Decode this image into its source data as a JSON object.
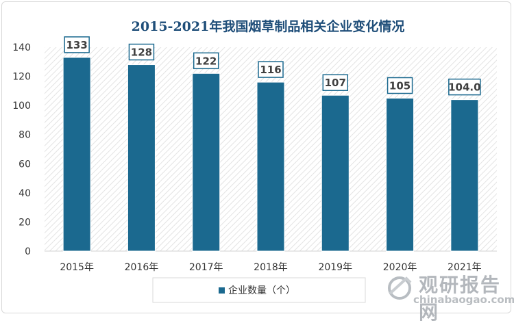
{
  "chart_data": {
    "type": "bar",
    "title": "2015-2021年我国烟草制品相关企业变化情况",
    "categories": [
      "2015年",
      "2016年",
      "2017年",
      "2018年",
      "2019年",
      "2020年",
      "2021年"
    ],
    "series": [
      {
        "name": "企业数量（个）",
        "values": [
          133,
          128,
          122,
          116,
          107,
          105,
          104.0
        ],
        "labels": [
          "133",
          "128",
          "122",
          "116",
          "107",
          "105",
          "104.0"
        ]
      }
    ],
    "ylim": [
      0,
      140
    ],
    "yticks": [
      0,
      20,
      40,
      60,
      80,
      100,
      120,
      140
    ],
    "legend_position": "bottom",
    "colors": {
      "bar": "#1b698f",
      "title": "#1f4e79",
      "label_border": "#1b698f",
      "hatch": "#e3e3e3"
    }
  },
  "watermark": {
    "title": "观研报告网",
    "url": "chinabaogao.com"
  }
}
